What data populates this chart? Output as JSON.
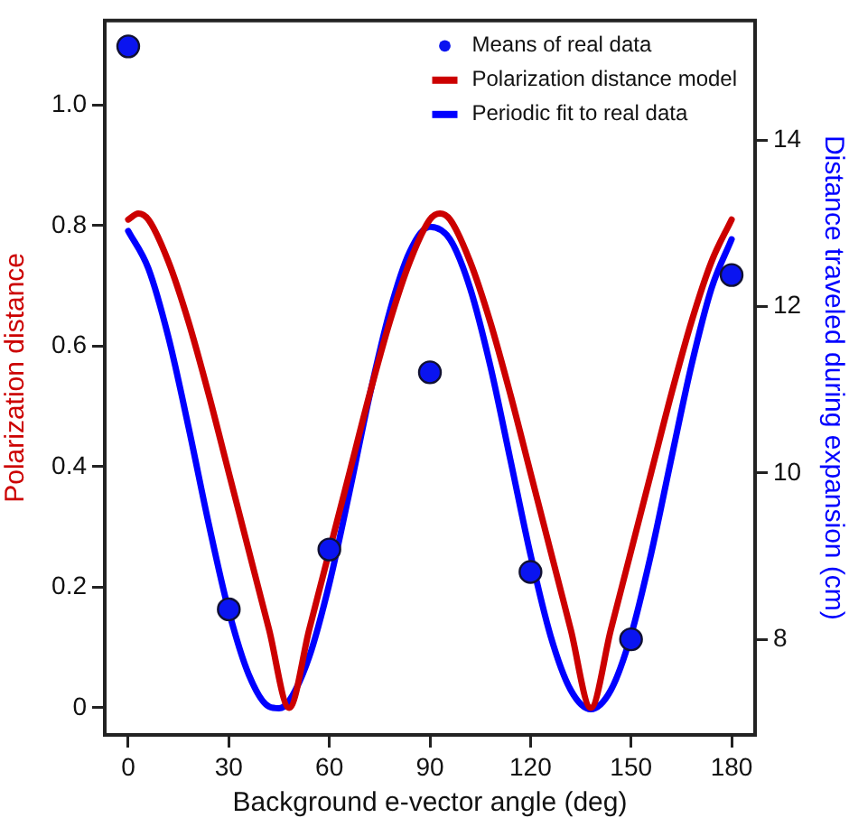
{
  "chart_data": {
    "type": "line",
    "xlabel": "Background e-vector angle (deg)",
    "ylabel": "Polarization distance",
    "y2label": "Distance traveled during expansion (cm)",
    "xlim": [
      -7,
      187
    ],
    "xticks": [
      0,
      30,
      60,
      90,
      120,
      150,
      180
    ],
    "ylim": [
      -0.045,
      1.14
    ],
    "yticks": [
      0,
      0.2,
      0.4,
      0.6,
      0.8,
      {
        "value": 1,
        "label": "1.0"
      }
    ],
    "y2lim": [
      6.85,
      15.44
    ],
    "y2ticks": [
      8,
      10,
      12,
      14
    ],
    "legend": "top right",
    "grid": false,
    "series": [
      {
        "name": "Means of real data",
        "type": "scatter",
        "axis": "y2",
        "marker": "circle",
        "color": "#0a14f0",
        "x": [
          0,
          30,
          60,
          90,
          120,
          150,
          180
        ],
        "values": [
          15.13,
          8.36,
          9.08,
          11.21,
          8.81,
          8.0,
          12.38
        ]
      },
      {
        "name": "Polarization distance model",
        "type": "line",
        "axis": "y",
        "color": "#cc0000",
        "x": [
          0,
          3,
          6,
          12,
          18,
          24,
          30,
          36,
          42,
          48,
          54,
          60,
          66,
          72,
          78,
          84,
          90,
          93,
          96,
          102,
          108,
          114,
          120,
          126,
          132,
          138,
          144,
          150,
          156,
          162,
          168,
          174,
          180
        ],
        "values": [
          0.81,
          0.82,
          0.81,
          0.74,
          0.64,
          0.52,
          0.39,
          0.26,
          0.13,
          0,
          0.13,
          0.26,
          0.39,
          0.52,
          0.64,
          0.74,
          0.81,
          0.82,
          0.81,
          0.74,
          0.64,
          0.52,
          0.39,
          0.26,
          0.13,
          0,
          0.13,
          0.26,
          0.39,
          0.52,
          0.64,
          0.74,
          0.81
        ]
      },
      {
        "name": "Periodic fit to real data",
        "type": "line",
        "axis": "y2",
        "color": "#0000ff",
        "x": [
          0,
          6,
          12,
          18,
          24,
          30,
          36,
          42,
          45,
          48,
          54,
          60,
          66,
          72,
          78,
          84,
          90,
          96,
          102,
          108,
          114,
          120,
          126,
          132,
          138,
          144,
          150,
          156,
          162,
          168,
          174,
          180
        ],
        "values": [
          12.91,
          12.46,
          11.63,
          10.55,
          9.39,
          8.34,
          7.57,
          7.19,
          7.17,
          7.26,
          7.79,
          8.67,
          9.77,
          10.93,
          11.94,
          12.66,
          12.96,
          12.81,
          12.22,
          11.29,
          10.16,
          9.02,
          8.04,
          7.39,
          7.16,
          7.39,
          8.05,
          9.03,
          10.17,
          11.29,
          12.22,
          12.81
        ]
      }
    ]
  }
}
